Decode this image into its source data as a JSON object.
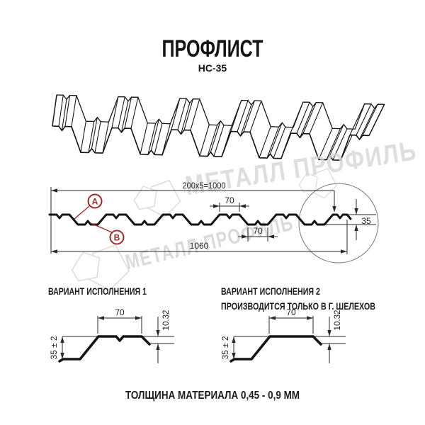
{
  "title": "ПРОФЛИСТ",
  "subtitle": "НС-35",
  "watermark": {
    "text": "МЕТАЛЛ ПРОФИЛЬ"
  },
  "cross_section": {
    "dim_total_top": "200x5=1000",
    "dim_top_flat": "70",
    "dim_bottom_flat": "70",
    "dim_overall_width": "1060",
    "dim_height": "35",
    "marker_a": "A",
    "marker_b": "B"
  },
  "variant1": {
    "label": "ВАРИАНТ ИСПОЛНЕНИЯ 1",
    "dim_top_flat": "70",
    "dim_lip": "10.32",
    "dim_height": "35 ± 2"
  },
  "variant2": {
    "label_line1": "ВАРИАНТ ИСПОЛНЕНИЯ 2",
    "label_line2": "ПРОИЗВОДИТСЯ ТОЛЬКО В Г. ШЕЛЕХОВ",
    "dim_top_flat": "70",
    "dim_lip": "10.32",
    "dim_height": "35 ± 2"
  },
  "footer": "ТОЛЩИНА МАТЕРИАЛА 0,45 - 0,9 ММ",
  "colors": {
    "ink": "#141414",
    "dim_line": "#2a2a2a",
    "accent_red": "#9e2b25",
    "watermark_gray": "#d6d6d6",
    "logo_gray": "#dcdcdc",
    "detail_circle_gray": "#777777"
  }
}
